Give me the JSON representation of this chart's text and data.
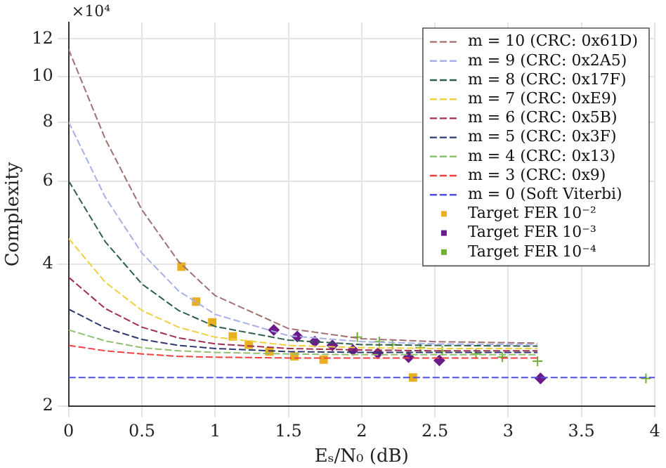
{
  "chart_data": {
    "type": "line",
    "xlabel": "Eₛ/N₀ (dB)",
    "ylabel": "Complexity",
    "annotations": [
      "×10⁴"
    ],
    "log": "y",
    "grid": true,
    "legend": "top right",
    "xlim": [
      0,
      4
    ],
    "xticks": [
      0,
      0.5,
      1,
      1.5,
      2,
      2.5,
      3,
      3.5,
      4
    ],
    "ylim": [
      2,
      13
    ],
    "yticks": [
      2,
      4,
      6,
      8,
      10,
      12
    ],
    "series": [
      {
        "name": "m = 10 (CRC: 0x61D)",
        "color": "#a07070",
        "line_style": "dashed",
        "marker": "none",
        "x": [
          0,
          0.25,
          0.5,
          0.75,
          1,
          1.5,
          2,
          2.5,
          3.2
        ],
        "values": [
          11.4,
          7.36,
          5.21,
          4.05,
          3.43,
          2.92,
          2.78,
          2.74,
          2.72
        ]
      },
      {
        "name": "m = 9 (CRC: 0x2A5)",
        "color": "#a8b0e8",
        "line_style": "dashed",
        "marker": "none",
        "x": [
          0,
          0.25,
          0.5,
          0.75,
          1,
          1.5,
          2,
          2.5,
          3.2
        ],
        "values": [
          8.0,
          5.54,
          4.22,
          3.51,
          3.13,
          2.82,
          2.74,
          2.71,
          2.7
        ]
      },
      {
        "name": "m = 8 (CRC: 0x17F)",
        "color": "#2e5e4e",
        "line_style": "dashed",
        "marker": "none",
        "x": [
          0,
          0.25,
          0.5,
          0.75,
          1,
          1.5,
          2,
          2.5,
          3.2
        ],
        "values": [
          6.0,
          4.46,
          3.63,
          3.19,
          2.95,
          2.76,
          2.7,
          2.69,
          2.68
        ]
      },
      {
        "name": "m = 7 (CRC: 0xE9)",
        "color": "#f0d040",
        "line_style": "dashed",
        "marker": "none",
        "x": [
          0,
          0.25,
          0.5,
          0.75,
          1,
          1.5,
          2,
          2.5,
          3.2
        ],
        "values": [
          4.53,
          3.66,
          3.19,
          2.94,
          2.8,
          2.69,
          2.66,
          2.65,
          2.65
        ]
      },
      {
        "name": "m = 6 (CRC: 0x5B)",
        "color": "#a03050",
        "line_style": "dashed",
        "marker": "none",
        "x": [
          0,
          0.25,
          0.5,
          0.75,
          1,
          1.5,
          2,
          2.5,
          3.2
        ],
        "values": [
          3.75,
          3.22,
          2.94,
          2.79,
          2.71,
          2.65,
          2.63,
          2.62,
          2.62
        ]
      },
      {
        "name": "m = 5 (CRC: 0x3F)",
        "color": "#303870",
        "line_style": "dashed",
        "marker": "none",
        "x": [
          0,
          0.25,
          0.5,
          0.75,
          1,
          1.5,
          2,
          2.5,
          3.2
        ],
        "values": [
          3.21,
          2.93,
          2.77,
          2.69,
          2.65,
          2.61,
          2.6,
          2.6,
          2.6
        ]
      },
      {
        "name": "m = 4 (CRC: 0x13)",
        "color": "#90c070",
        "line_style": "dashed",
        "marker": "none",
        "x": [
          0,
          0.25,
          0.5,
          0.75,
          1,
          1.5,
          2,
          2.5,
          3.2
        ],
        "values": [
          2.9,
          2.75,
          2.66,
          2.62,
          2.6,
          2.58,
          2.57,
          2.57,
          2.57
        ]
      },
      {
        "name": "m = 3 (CRC: 0x9)",
        "color": "#f04040",
        "line_style": "dashed",
        "marker": "none",
        "x": [
          0,
          0.25,
          0.5,
          0.75,
          1,
          1.5,
          2,
          2.5,
          3.2
        ],
        "values": [
          2.69,
          2.62,
          2.58,
          2.55,
          2.54,
          2.53,
          2.53,
          2.53,
          2.53
        ]
      },
      {
        "name": "m = 0 (Soft Viterbi)",
        "color": "#5050e0",
        "line_style": "dashed",
        "marker": "none",
        "x": [
          0,
          4
        ],
        "values": [
          2.3,
          2.3
        ]
      },
      {
        "name": "Target FER 10⁻²",
        "type": "scatter",
        "color": "#e8b020",
        "marker": "square",
        "x": [
          0.77,
          0.87,
          0.98,
          1.12,
          1.23,
          1.37,
          1.54,
          1.74,
          2.35
        ],
        "values": [
          3.95,
          3.33,
          3.01,
          2.81,
          2.7,
          2.61,
          2.55,
          2.51,
          2.3
        ]
      },
      {
        "name": "Target FER 10⁻³",
        "type": "scatter",
        "color": "#6a1a8a",
        "marker": "diamond",
        "x": [
          1.4,
          1.56,
          1.68,
          1.8,
          1.94,
          2.11,
          2.32,
          2.53,
          3.22
        ],
        "values": [
          2.9,
          2.81,
          2.74,
          2.69,
          2.63,
          2.59,
          2.54,
          2.5,
          2.29
        ]
      },
      {
        "name": "Target FER 10⁻⁴",
        "type": "scatter",
        "color": "#70b030",
        "marker": "cross",
        "x": [
          1.97,
          2.12,
          2.21,
          2.4,
          2.55,
          2.78,
          2.96,
          3.2,
          3.94
        ],
        "values": [
          2.8,
          2.74,
          2.7,
          2.66,
          2.62,
          2.58,
          2.54,
          2.49,
          2.29
        ]
      }
    ]
  }
}
